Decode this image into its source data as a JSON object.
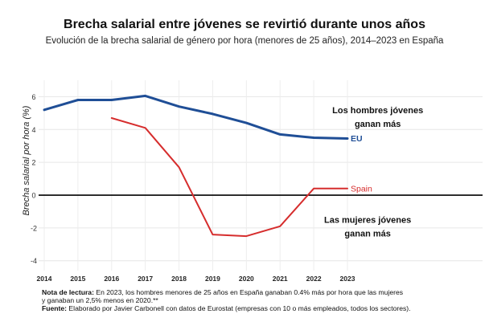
{
  "chart_data": {
    "type": "line",
    "title": "Brecha salarial entre jóvenes se revirtió durante unos años",
    "subtitle": "Evolución de la brecha salarial de género por hora (menores de 25 años), 2014–2023 en España",
    "xlabel": "",
    "ylabel": "Brecha salarial por hora (%)",
    "x": [
      2014,
      2015,
      2016,
      2017,
      2018,
      2019,
      2020,
      2021,
      2022,
      2023
    ],
    "xlim": [
      2014,
      2023
    ],
    "ylim": [
      -4.6,
      7
    ],
    "yticks": [
      -4,
      -2,
      0,
      2,
      4,
      6
    ],
    "grid": true,
    "series": [
      {
        "name": "EU",
        "color": "#1f4e96",
        "x": [
          2014,
          2015,
          2016,
          2017,
          2018,
          2019,
          2020,
          2021,
          2022,
          2023
        ],
        "values": [
          5.2,
          5.8,
          5.8,
          6.05,
          5.4,
          4.95,
          4.4,
          3.7,
          3.5,
          3.45
        ]
      },
      {
        "name": "Spain",
        "color": "#d62d2d",
        "x": [
          2016,
          2017,
          2018,
          2019,
          2020,
          2021,
          2022,
          2023
        ],
        "values": [
          4.7,
          4.1,
          1.7,
          -2.4,
          -2.5,
          -1.9,
          0.4,
          0.4
        ]
      }
    ],
    "annotations": [
      {
        "text_lines": [
          "Los hombres jóvenes",
          "ganan más"
        ],
        "x": 2023.9,
        "y": 5.2
      },
      {
        "text_lines": [
          "Las mujeres jóvenes",
          "ganan más"
        ],
        "x": 2023.6,
        "y": -1.5
      }
    ]
  },
  "notes": {
    "reading_label": "Nota de lectura:",
    "reading_text_1": "En 2023, los hombres menores de 25 años en España ganaban 0.4% más por hora que las mujeres",
    "reading_text_2": "y ganaban un 2,5% menos en 2020.**",
    "source_label": "Fuente:",
    "source_text": "Elaborado por Javier Carbonell con datos de Eurostat (empresas con 10 o más empleados, todos los sectores)."
  }
}
